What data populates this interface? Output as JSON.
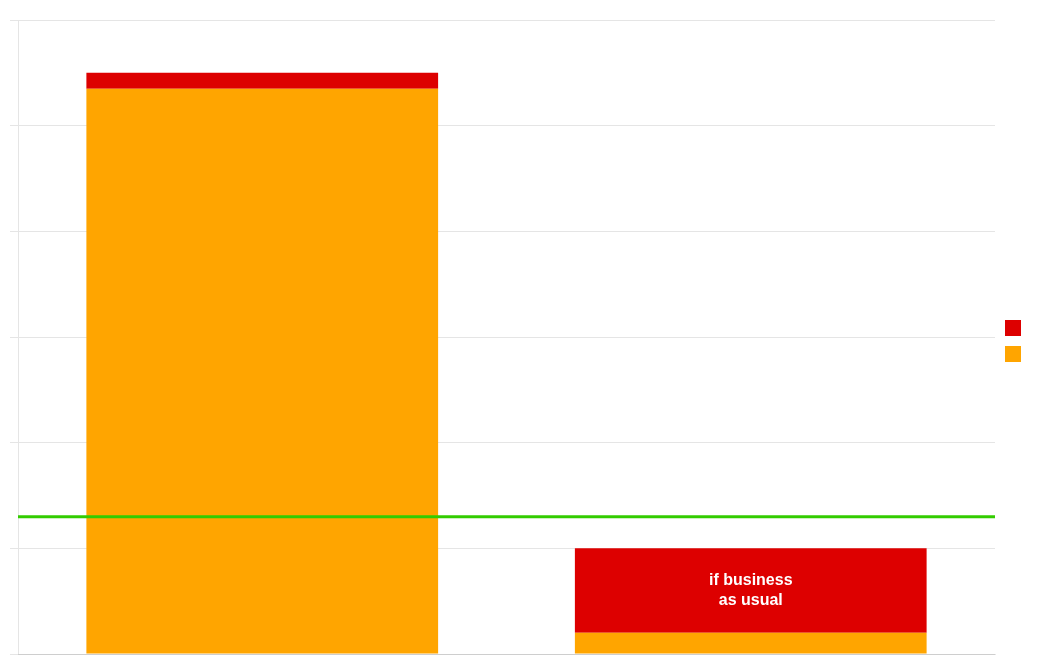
{
  "chart_data": {
    "type": "bar",
    "stacked": true,
    "categories": [
      null,
      null
    ],
    "series": [
      {
        "color": "#FFA500",
        "values": [
          53.5,
          2
        ]
      },
      {
        "color": "#DD0000",
        "values": [
          1.5,
          8
        ]
      }
    ],
    "ylim": [
      0,
      60
    ],
    "yticks": [
      0,
      10,
      20,
      30,
      40,
      50,
      60
    ],
    "grid": true,
    "tick_labels": false,
    "legend": "right",
    "reference_lines": [
      {
        "value": 13,
        "color": "#33CC00"
      }
    ],
    "annotations": [
      {
        "text": "if business\nas usual",
        "color": "#FFFFFF"
      }
    ]
  }
}
